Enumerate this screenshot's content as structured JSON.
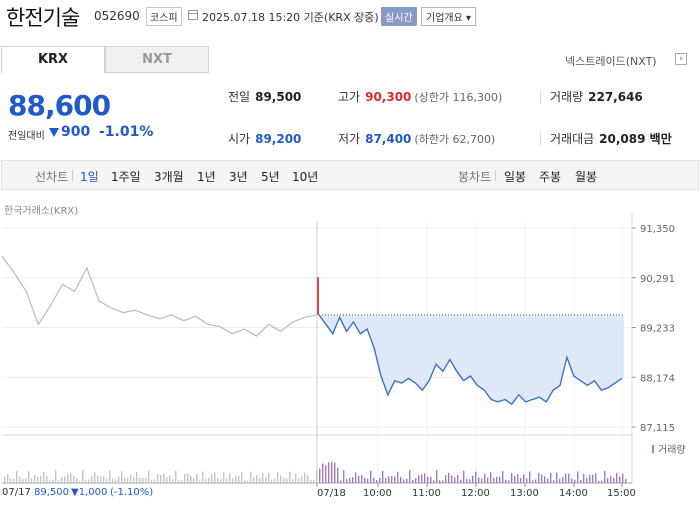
{
  "header": {
    "name": "한전기술",
    "code": "052690",
    "market": "코스피",
    "datetime": "2025.07.18 15:20 기준(KRX 장중)",
    "realtime": "실시간",
    "overview": "기업개요 ▾"
  },
  "tabs": [
    {
      "label": "KRX",
      "active": true
    },
    {
      "label": "NXT",
      "active": false
    }
  ],
  "nxt_link": "넥스트레이드(NXT)",
  "quote": {
    "price": "88,600",
    "prev_label": "전일대비",
    "change": "900",
    "rate": "-1.01%",
    "color_down": "#1f5ac8",
    "color_up": "#d92b2b"
  },
  "info": {
    "prev": {
      "label": "전일",
      "value": "89,500"
    },
    "high": {
      "label": "고가",
      "value": "90,300",
      "sub": "(상한가 116,300)"
    },
    "volume": {
      "label": "거래량",
      "value": "227,646"
    },
    "open": {
      "label": "시가",
      "value": "89,200"
    },
    "low": {
      "label": "저가",
      "value": "87,400",
      "sub": "(하한가 62,700)"
    },
    "amount": {
      "label": "거래대금",
      "value": "20,089 백만"
    }
  },
  "periods": {
    "label": "선차트",
    "items": [
      "1일",
      "1주일",
      "3개월",
      "1년",
      "3년",
      "5년",
      "10년"
    ],
    "active_index": 0,
    "candle_label": "봉차트",
    "candle_items": [
      "일봉",
      "주봉",
      "월봉"
    ]
  },
  "chart_data": {
    "type": "line",
    "source_label": "한국거래소(KRX)",
    "y_ticks": [
      "91,350",
      "90,291",
      "89,233",
      "88,174",
      "87,115"
    ],
    "ylim": [
      87115,
      91350
    ],
    "x_ticks": [
      "07/18",
      "10:00",
      "11:00",
      "12:00",
      "13:00",
      "14:00",
      "15:00"
    ],
    "prev_close": 89500,
    "series": [
      {
        "name": "07/17",
        "color": "#bbbbbb",
        "values": [
          90750,
          90400,
          90000,
          89300,
          89700,
          90150,
          90000,
          90500,
          89800,
          89650,
          89550,
          89600,
          89500,
          89420,
          89500,
          89380,
          89470,
          89300,
          89250,
          89100,
          89200,
          89050,
          89300,
          89150,
          89350,
          89450,
          89500
        ]
      },
      {
        "name": "07/18",
        "color": "#3b73c9",
        "values": [
          89500,
          89300,
          89100,
          89450,
          89150,
          89350,
          89100,
          89200,
          88800,
          88200,
          87800,
          88100,
          88050,
          88150,
          88050,
          87900,
          88100,
          88450,
          88300,
          88550,
          88300,
          88100,
          88200,
          88000,
          87900,
          87700,
          87650,
          87700,
          87600,
          87800,
          87650,
          87700,
          87750,
          87650,
          87900,
          88000,
          88600,
          88200,
          88100,
          88000,
          88100,
          87900,
          87950,
          88050,
          88150
        ]
      }
    ],
    "volume_label": "거래량",
    "volume_color": "#a27bb8"
  },
  "footer": {
    "date": "07/17",
    "price": "89,500",
    "change": "▼1,000",
    "rate": "(-1.10%)"
  }
}
